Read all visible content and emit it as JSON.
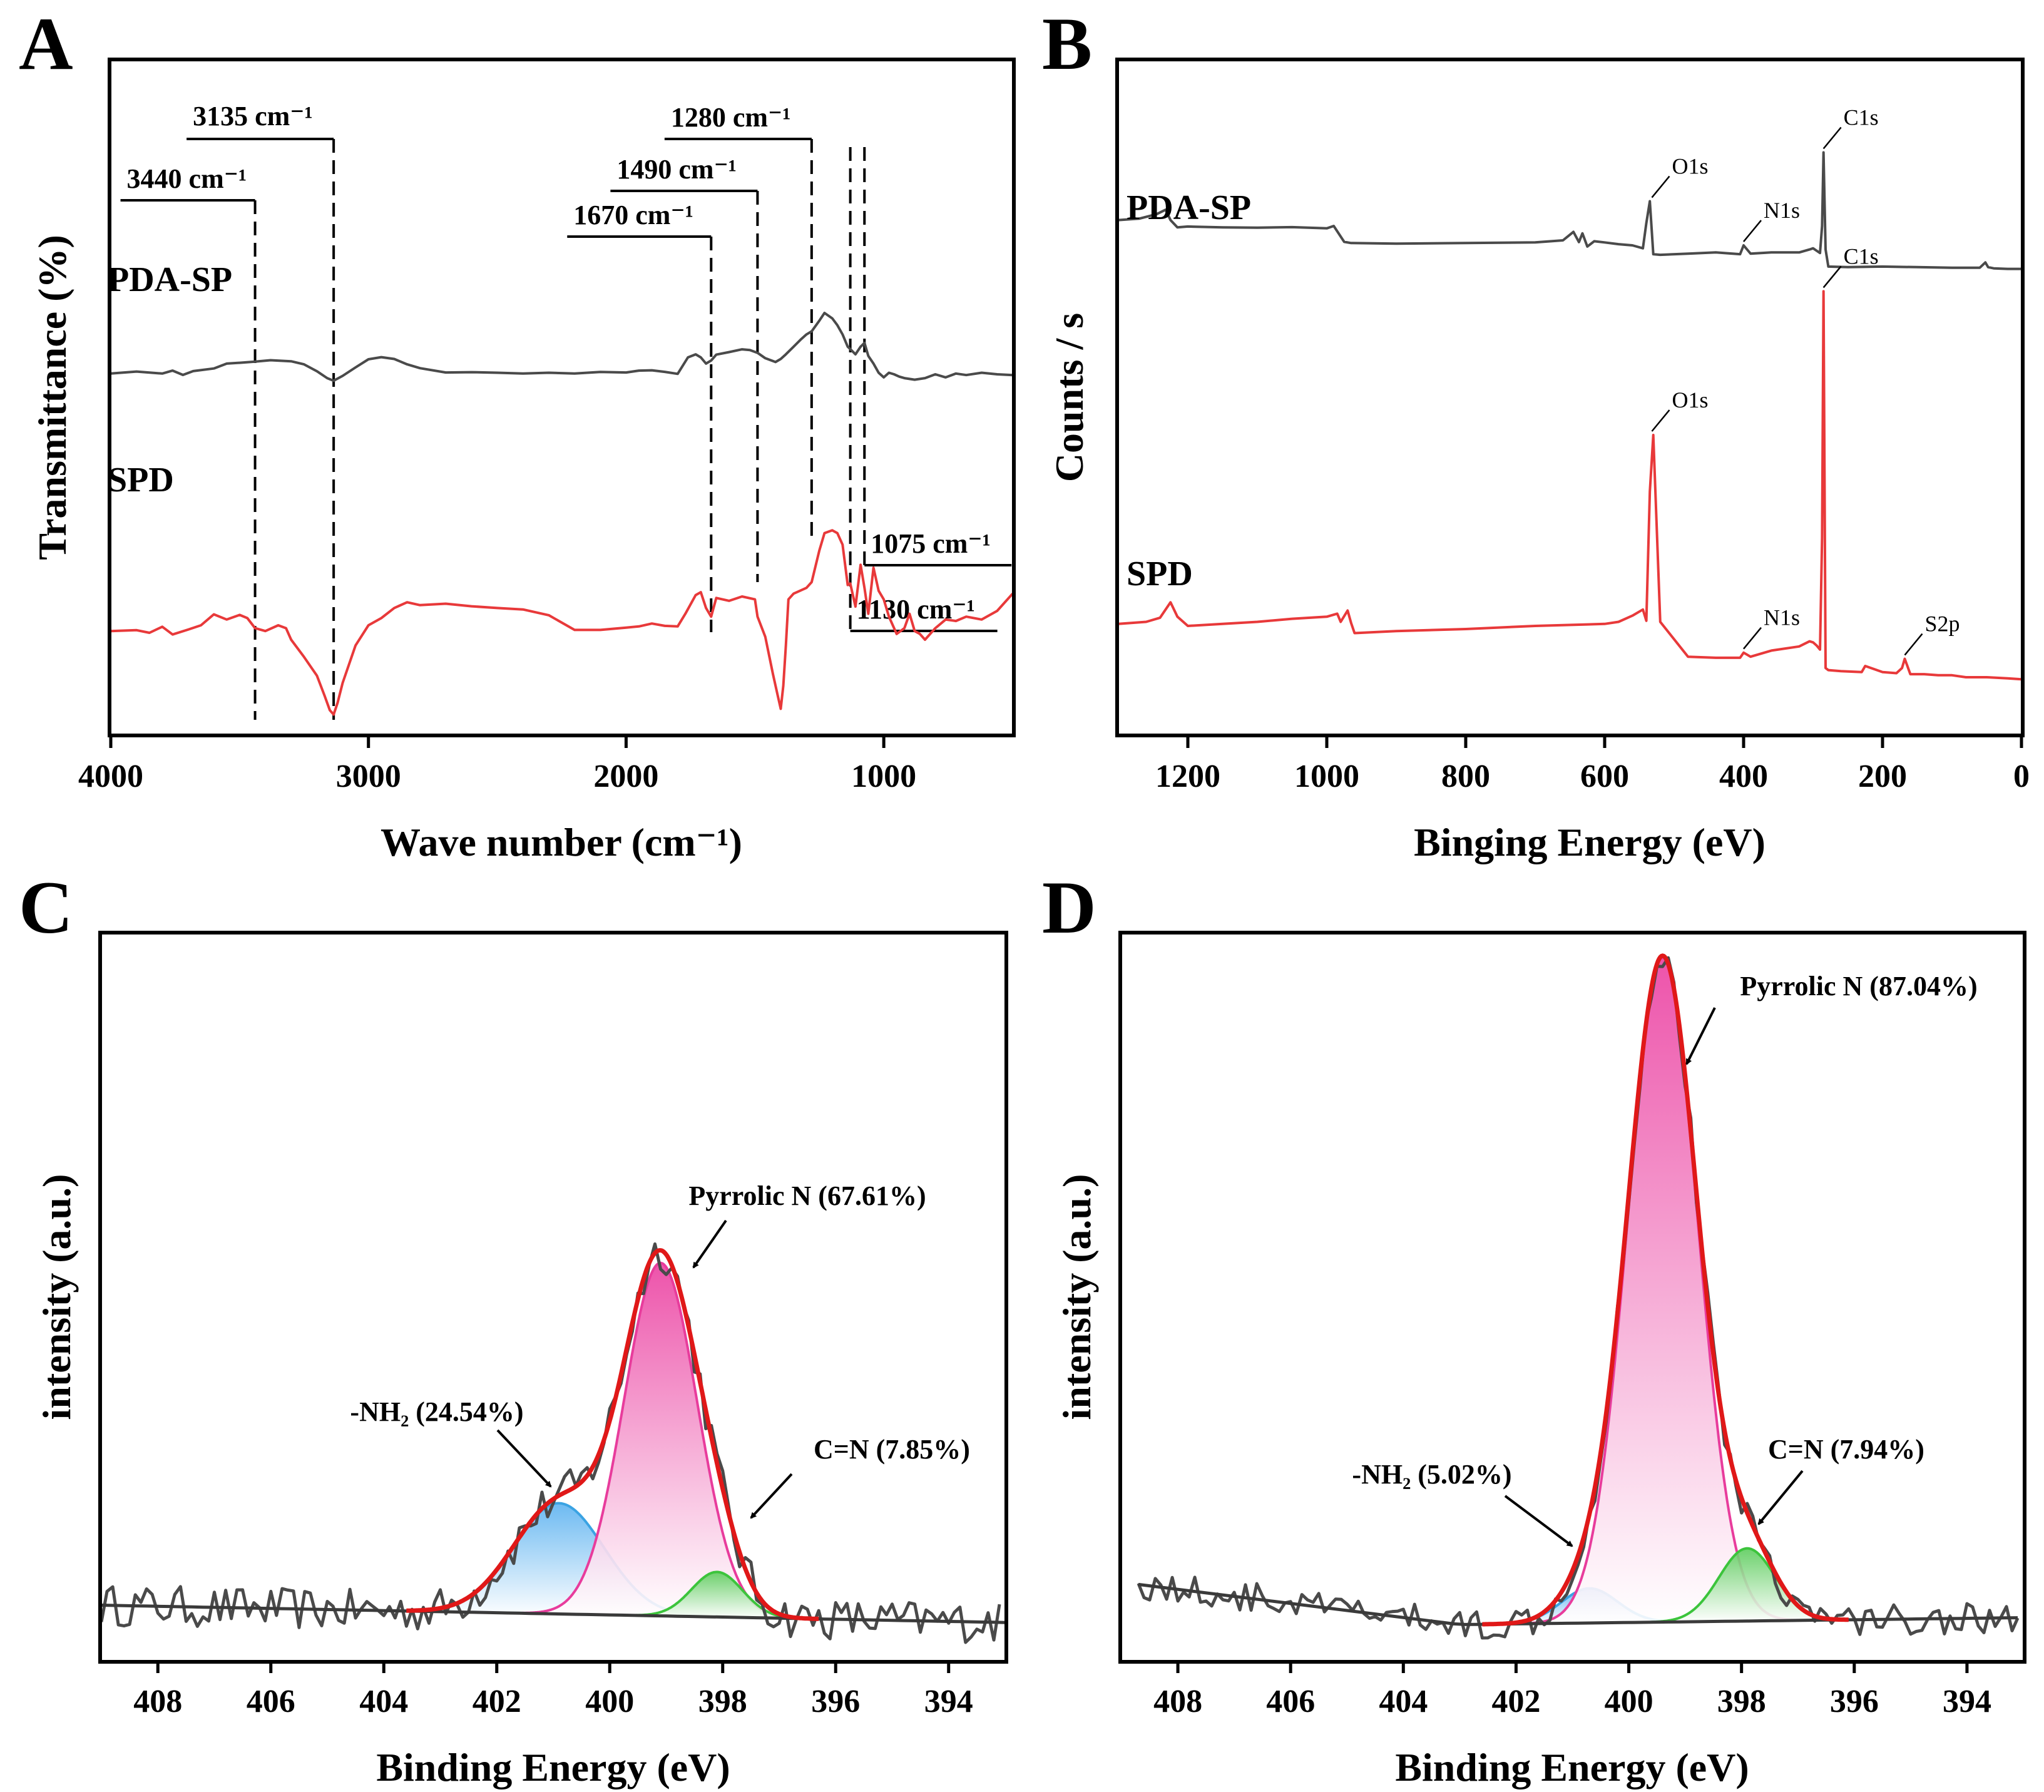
{
  "chart_data": [
    {
      "panel": "A",
      "type": "line",
      "xlabel": "Wave number (cm⁻¹)",
      "ylabel": "Transmittance (%)",
      "xlim": [
        4000,
        500
      ],
      "xticks": [
        4000,
        3000,
        2000,
        1000
      ],
      "ylim": [
        0,
        100
      ],
      "series": [
        {
          "name": "PDA-SP",
          "color": "#4a4a4a",
          "x": [
            4000,
            3900,
            3800,
            3760,
            3720,
            3680,
            3600,
            3550,
            3500,
            3440,
            3380,
            3300,
            3250,
            3200,
            3160,
            3135,
            3100,
            3050,
            3000,
            2950,
            2900,
            2850,
            2800,
            2700,
            2600,
            2500,
            2400,
            2300,
            2200,
            2100,
            2000,
            1950,
            1900,
            1850,
            1800,
            1760,
            1730,
            1710,
            1690,
            1670,
            1650,
            1600,
            1550,
            1520,
            1490,
            1460,
            1420,
            1400,
            1380,
            1350,
            1320,
            1300,
            1280,
            1250,
            1230,
            1200,
            1180,
            1160,
            1140,
            1130,
            1110,
            1090,
            1075,
            1060,
            1040,
            1020,
            1000,
            980,
            960,
            940,
            920,
            900,
            880,
            860,
            840,
            800,
            760,
            720,
            680,
            620,
            560,
            500
          ],
          "y": [
            60.5,
            61.8,
            60.5,
            62.4,
            59.6,
            62.1,
            63.8,
            67,
            67.5,
            68.3,
            69.2,
            68.5,
            66.5,
            62,
            57.5,
            55.8,
            59,
            64.5,
            69.8,
            71.2,
            70,
            66.5,
            64,
            61.2,
            61.4,
            61,
            60.5,
            61,
            60.5,
            61.5,
            61.2,
            62.4,
            62.6,
            61.6,
            60.3,
            71,
            73,
            71,
            67,
            69,
            72.8,
            74.5,
            76.3,
            75.8,
            74,
            70.5,
            68,
            70,
            73,
            78,
            83,
            86,
            88,
            95,
            100,
            96.5,
            92,
            86,
            78,
            76.5,
            73,
            78,
            80.5,
            72,
            67,
            61,
            58,
            61,
            60,
            58.5,
            57.5,
            57,
            56.5,
            57,
            57.5,
            60,
            58,
            60.5,
            59.5,
            61,
            60,
            59.5
          ]
        },
        {
          "name": "SPD",
          "color": "#e8393a",
          "x": [
            4000,
            3900,
            3850,
            3800,
            3760,
            3700,
            3650,
            3600,
            3550,
            3500,
            3470,
            3440,
            3400,
            3350,
            3320,
            3300,
            3250,
            3200,
            3170,
            3150,
            3135,
            3120,
            3100,
            3050,
            3000,
            2950,
            2900,
            2850,
            2800,
            2700,
            2600,
            2500,
            2400,
            2300,
            2200,
            2100,
            2000,
            1950,
            1900,
            1850,
            1800,
            1770,
            1730,
            1710,
            1690,
            1670,
            1650,
            1600,
            1550,
            1500,
            1490,
            1460,
            1430,
            1410,
            1400,
            1390,
            1380,
            1370,
            1350,
            1300,
            1280,
            1250,
            1230,
            1200,
            1180,
            1160,
            1140,
            1130,
            1110,
            1090,
            1075,
            1060,
            1040,
            1020,
            1000,
            980,
            950,
            920,
            900,
            880,
            860,
            840,
            800,
            760,
            720,
            680,
            620,
            560,
            500
          ],
          "y": [
            33,
            33.3,
            32.4,
            34.5,
            31.8,
            33.5,
            35,
            38.8,
            37,
            38.6,
            37.5,
            34,
            33,
            35,
            34,
            30,
            24,
            17.5,
            10.5,
            5.5,
            4,
            8,
            15,
            28,
            35,
            37.5,
            41,
            43,
            42,
            42.5,
            41.6,
            41,
            40.5,
            38.5,
            33.4,
            33.4,
            34.2,
            34.6,
            35.6,
            34.8,
            34.6,
            39,
            45.5,
            46.5,
            41,
            38,
            44.5,
            43.5,
            45,
            44,
            38,
            31,
            18,
            10,
            6,
            14,
            28,
            44,
            46,
            48,
            50,
            61,
            67,
            68,
            67,
            63,
            49,
            49.5,
            41.5,
            56,
            48,
            39,
            55,
            47,
            44,
            38,
            32,
            34,
            39,
            33,
            32,
            30,
            34,
            37,
            36.5,
            38,
            37,
            40,
            46
          ]
        }
      ],
      "annotations": [
        {
          "label": "3440 cm⁻¹",
          "x": 3440
        },
        {
          "label": "3135 cm⁻¹",
          "x": 3135
        },
        {
          "label": "1670 cm⁻¹",
          "x": 1670
        },
        {
          "label": "1490 cm⁻¹",
          "x": 1490
        },
        {
          "label": "1280 cm⁻¹",
          "x": 1280
        },
        {
          "label": "1130 cm⁻¹",
          "x": 1130
        },
        {
          "label": "1075 cm⁻¹",
          "x": 1075
        }
      ]
    },
    {
      "panel": "B",
      "type": "line",
      "xlabel": "Binging Energy (eV)",
      "ylabel": "Counts / s",
      "xlim": [
        1300,
        0
      ],
      "xticks": [
        1200,
        1000,
        800,
        600,
        400,
        200,
        0
      ],
      "ylim": [
        0,
        100
      ],
      "series": [
        {
          "name": "PDA-SP",
          "color": "#4a4a4a",
          "x": [
            1300,
            1270,
            1245,
            1232,
            1225,
            1215,
            1200,
            1150,
            1100,
            1050,
            1000,
            990,
            975,
            965,
            900,
            800,
            700,
            660,
            645,
            637,
            632,
            625,
            615,
            600,
            580,
            560,
            545,
            540,
            535,
            530,
            520,
            480,
            440,
            405,
            400,
            390,
            360,
            320,
            305,
            300,
            295,
            290,
            287,
            285,
            282,
            278,
            250,
            200,
            150,
            100,
            60,
            52,
            48,
            40,
            20,
            0
          ],
          "y": [
            72,
            72.5,
            74,
            75.5,
            72,
            69.5,
            69.8,
            69.5,
            69.4,
            69.6,
            69.2,
            70,
            64.6,
            64.2,
            64,
            64.2,
            64.4,
            65.1,
            68,
            64.5,
            67.5,
            63,
            64.8,
            64.4,
            63.8,
            63.4,
            62.4,
            71,
            78.4,
            60.4,
            60.2,
            60.6,
            61,
            60.4,
            63.4,
            60.6,
            61,
            61,
            62,
            62.4,
            61.6,
            60.8,
            70,
            95,
            62,
            56.2,
            56,
            56.2,
            56,
            55.8,
            55.8,
            57.6,
            56,
            55.6,
            55.4,
            55.4
          ]
        },
        {
          "name": "SPD",
          "color": "#e8393a",
          "x": [
            1300,
            1260,
            1240,
            1225,
            1215,
            1200,
            1150,
            1100,
            1050,
            1000,
            985,
            980,
            970,
            965,
            960,
            900,
            800,
            700,
            600,
            580,
            560,
            545,
            540,
            535,
            530,
            520,
            480,
            440,
            405,
            400,
            390,
            360,
            320,
            305,
            300,
            295,
            290,
            287,
            285,
            282,
            278,
            260,
            230,
            225,
            200,
            180,
            172,
            168,
            160,
            140,
            120,
            100,
            80,
            50,
            20,
            0
          ],
          "y": [
            13.2,
            13.6,
            14.4,
            17.4,
            14.6,
            12.8,
            13.2,
            13.6,
            14.2,
            14.6,
            15.2,
            13.6,
            15.8,
            13.4,
            11.4,
            11.8,
            12.2,
            12.8,
            13.2,
            13.6,
            14.8,
            16,
            13.8,
            39,
            50,
            13.6,
            6.8,
            6.6,
            6.6,
            7.6,
            6.8,
            8,
            8.8,
            9.8,
            9.6,
            9,
            8.2,
            30,
            78,
            4.6,
            4.2,
            4,
            3.8,
            5,
            3.8,
            3.6,
            4.6,
            6.4,
            3.4,
            3.4,
            3.2,
            3.2,
            2.8,
            2.8,
            2.6,
            2.4
          ]
        }
      ],
      "peak_labels": [
        {
          "series": "PDA-SP",
          "label": "C1s",
          "x": 285
        },
        {
          "series": "PDA-SP",
          "label": "O1s",
          "x": 532
        },
        {
          "series": "PDA-SP",
          "label": "N1s",
          "x": 400
        },
        {
          "series": "SPD",
          "label": "C1s",
          "x": 285
        },
        {
          "series": "SPD",
          "label": "O1s",
          "x": 532
        },
        {
          "series": "SPD",
          "label": "N1s",
          "x": 400
        },
        {
          "series": "SPD",
          "label": "S2p",
          "x": 168
        }
      ]
    },
    {
      "panel": "C",
      "type": "line",
      "xlabel": "Binding Energy (eV)",
      "ylabel": "intensity (a.u.)",
      "xlim": [
        409,
        393
      ],
      "xticks": [
        408,
        406,
        404,
        402,
        400,
        398,
        396,
        394
      ],
      "ylim": [
        -5,
        100
      ],
      "background": {
        "x": [
          409,
          393
        ],
        "y": [
          3.0,
          0.5
        ]
      },
      "components": [
        {
          "name": "-NH₂",
          "percent": "24.54%",
          "center": 400.9,
          "height": 16,
          "sigma": 0.8,
          "color": "#3aa3e3"
        },
        {
          "name": "Pyrrolic N",
          "percent": "67.61%",
          "center": 399.1,
          "height": 51,
          "sigma": 0.65,
          "color": "#e83c9c"
        },
        {
          "name": "C=N",
          "percent": "7.85%",
          "center": 398.1,
          "height": 6.5,
          "sigma": 0.45,
          "color": "#3cc43c"
        }
      ],
      "labels": [
        {
          "text": "Pyrrolic N (67.61%)",
          "component": "Pyrrolic N"
        },
        {
          "text": "-NH₂ (24.54%)",
          "component": "-NH₂"
        },
        {
          "text": "C=N (7.85%)",
          "component": "C=N"
        }
      ],
      "fit_color": "#e01818",
      "raw_color": "#4a4a4a"
    },
    {
      "panel": "D",
      "type": "line",
      "xlabel": "Binding Energy (eV)",
      "ylabel": "intensity (a.u.)",
      "xlim": [
        409,
        393
      ],
      "xticks": [
        408,
        406,
        404,
        402,
        400,
        398,
        396,
        394
      ],
      "ylim": [
        -5,
        100
      ],
      "background": {
        "x": [
          408.7,
          403,
          393
        ],
        "y": [
          6,
          0.2,
          1.2
        ]
      },
      "components": [
        {
          "name": "-NH₂",
          "percent": "5.02%",
          "center": 400.7,
          "height": 5,
          "sigma": 0.5,
          "color": "#3aa3e3"
        },
        {
          "name": "Pyrrolic N",
          "percent": "87.04%",
          "center": 399.4,
          "height": 96,
          "sigma": 0.62,
          "color": "#e83c9c"
        },
        {
          "name": "C=N",
          "percent": "7.94%",
          "center": 397.9,
          "height": 10.5,
          "sigma": 0.5,
          "color": "#3cc43c"
        }
      ],
      "labels": [
        {
          "text": "Pyrrolic N (87.04%)",
          "component": "Pyrrolic N"
        },
        {
          "text": "-NH₂ (5.02%)",
          "component": "-NH₂"
        },
        {
          "text": "C=N (7.94%)",
          "component": "C=N"
        }
      ],
      "fit_color": "#e01818",
      "raw_color": "#4a4a4a"
    }
  ]
}
